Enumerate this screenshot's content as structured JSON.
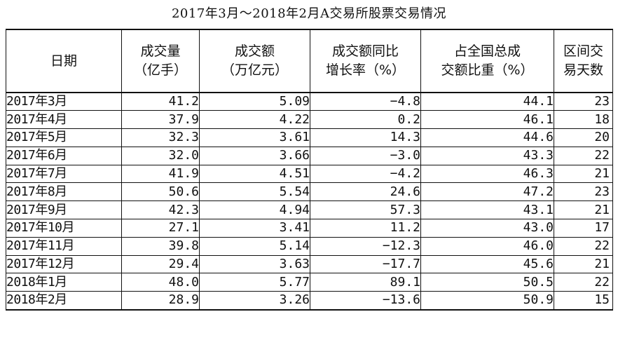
{
  "chart_data": {
    "type": "table",
    "title": "2017年3月～2018年2月A交易所股票交易情况",
    "columns": [
      [
        "日期"
      ],
      [
        "成交量",
        "（亿手）"
      ],
      [
        "成交额",
        "（万亿元）"
      ],
      [
        "成交额同比",
        "增长率（%）"
      ],
      [
        "占全国总成",
        "交额比重（%）"
      ],
      [
        "区间交",
        "易天数"
      ]
    ],
    "rows": [
      [
        "2017年3月",
        "41.2",
        "5.09",
        "−4.8",
        "44.1",
        "23"
      ],
      [
        "2017年4月",
        "37.9",
        "4.22",
        "0.2",
        "46.1",
        "18"
      ],
      [
        "2017年5月",
        "32.3",
        "3.61",
        "14.3",
        "44.6",
        "20"
      ],
      [
        "2017年6月",
        "32.0",
        "3.66",
        "−3.0",
        "43.3",
        "22"
      ],
      [
        "2017年7月",
        "41.9",
        "4.51",
        "−4.2",
        "46.3",
        "21"
      ],
      [
        "2017年8月",
        "50.6",
        "5.54",
        "24.6",
        "47.2",
        "23"
      ],
      [
        "2017年9月",
        "42.3",
        "4.94",
        "57.3",
        "43.1",
        "21"
      ],
      [
        "2017年10月",
        "27.1",
        "3.41",
        "11.2",
        "43.0",
        "17"
      ],
      [
        "2017年11月",
        "39.8",
        "5.14",
        "−12.3",
        "46.0",
        "22"
      ],
      [
        "2017年12月",
        "29.4",
        "3.63",
        "−17.7",
        "45.6",
        "21"
      ],
      [
        "2018年1月",
        "48.0",
        "5.77",
        "89.1",
        "50.5",
        "22"
      ],
      [
        "2018年2月",
        "28.9",
        "3.26",
        "−13.6",
        "50.9",
        "15"
      ]
    ]
  }
}
